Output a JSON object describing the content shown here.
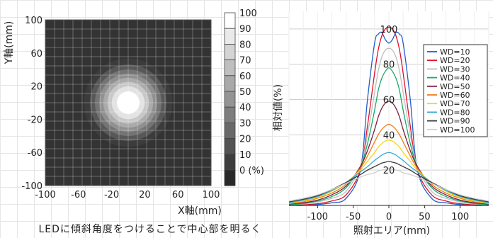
{
  "chart_data": [
    {
      "type": "heatmap",
      "title": "",
      "xlabel": "X軸(mm)",
      "ylabel": "Y軸(mm)",
      "xlim": [
        -100,
        100
      ],
      "ylim": [
        -100,
        100
      ],
      "x_ticks": [
        "-100",
        "-60",
        "-20",
        "20",
        "60",
        "100"
      ],
      "y_ticks": [
        "100",
        "60",
        "20",
        "-20",
        "-60",
        "-100"
      ],
      "center": [
        0,
        0
      ],
      "peak": 100,
      "falloff_mm": 42,
      "colorbar": {
        "levels": [
          100,
          90,
          80,
          70,
          60,
          50,
          40,
          30,
          20,
          10,
          0
        ],
        "labels": [
          "100",
          "90",
          "80",
          "70",
          "60",
          "50",
          "40",
          "30",
          "20",
          "10",
          "0 (%)"
        ],
        "orientation": "vertical",
        "colors": "white-to-black"
      },
      "grid": true,
      "caption": "LEDに傾斜角度をつけることで中心部を明るく"
    },
    {
      "type": "line",
      "title": "",
      "xlabel": "照射エリア(mm)",
      "ylabel": "相対値(%)",
      "xlim": [
        -140,
        140
      ],
      "ylim": [
        0,
        110
      ],
      "x_ticks": [
        "-100",
        "-50",
        "0",
        "50",
        "100"
      ],
      "y_labels": [
        "100",
        "80",
        "60",
        "40",
        "20"
      ],
      "grid": true,
      "legend": "right",
      "x": [
        -140,
        -120,
        -100,
        -80,
        -60,
        -40,
        -30,
        -20,
        -15,
        -10,
        -5,
        0,
        5,
        10,
        15,
        20,
        30,
        40,
        60,
        80,
        100,
        120,
        140
      ],
      "series": [
        {
          "name": "WD=10",
          "color": "#1f5fc8",
          "values": [
            0,
            0,
            0.5,
            1.5,
            4,
            20,
            60,
            92,
            97,
            98,
            94,
            92,
            94,
            98,
            97,
            92,
            60,
            20,
            4,
            1.5,
            0.5,
            0,
            0
          ]
        },
        {
          "name": "WD=20",
          "color": "#e0102a",
          "values": [
            0,
            0.3,
            1,
            2.5,
            6,
            20,
            45,
            75,
            88,
            96,
            100,
            101,
            100,
            96,
            88,
            75,
            45,
            20,
            6,
            2.5,
            1,
            0.3,
            0
          ]
        },
        {
          "name": "WD=30",
          "color": "#bfbfbf",
          "values": [
            0.3,
            0.8,
            2,
            4,
            8,
            22,
            40,
            64,
            76,
            84,
            88,
            89,
            88,
            84,
            76,
            64,
            40,
            22,
            8,
            4,
            2,
            0.8,
            0.3
          ]
        },
        {
          "name": "WD=40",
          "color": "#1aa86a",
          "values": [
            0.5,
            1,
            2.5,
            5,
            10,
            22,
            35,
            54,
            65,
            72,
            76,
            78,
            76,
            72,
            65,
            54,
            35,
            22,
            10,
            5,
            2.5,
            1,
            0.5
          ]
        },
        {
          "name": "WD=50",
          "color": "#7b1c3c",
          "values": [
            0.8,
            1.5,
            3,
            6,
            11,
            22,
            31,
            43,
            50,
            55,
            58,
            59,
            58,
            55,
            50,
            43,
            31,
            22,
            11,
            6,
            3,
            1.5,
            0.8
          ]
        },
        {
          "name": "WD=60",
          "color": "#ee7f18",
          "values": [
            1,
            2,
            4,
            7,
            12,
            21,
            28,
            36,
            40,
            43,
            45,
            46,
            45,
            43,
            40,
            36,
            28,
            21,
            12,
            7,
            4,
            2,
            1
          ]
        },
        {
          "name": "WD=70",
          "color": "#f3d51a",
          "values": [
            1.2,
            2.5,
            4.5,
            8,
            13,
            20,
            25,
            30,
            33,
            35,
            36.5,
            37,
            36.5,
            35,
            33,
            30,
            25,
            20,
            13,
            8,
            4.5,
            2.5,
            1.2
          ]
        },
        {
          "name": "WD=80",
          "color": "#33a8dc",
          "values": [
            1.5,
            3,
            5,
            8.5,
            13,
            19,
            22,
            25.5,
            27,
            28.5,
            29.5,
            30,
            29.5,
            28.5,
            27,
            25.5,
            22,
            19,
            13,
            8.5,
            5,
            3,
            1.5
          ]
        },
        {
          "name": "WD=90",
          "color": "#3a3a3a",
          "values": [
            2,
            3.5,
            5.5,
            9,
            13,
            17.5,
            20,
            22,
            23,
            24,
            24.5,
            25,
            24.5,
            24,
            23,
            22,
            20,
            17.5,
            13,
            9,
            5.5,
            3.5,
            2
          ]
        },
        {
          "name": "WD=100",
          "color": "#cfcfcf",
          "values": [
            2.5,
            4,
            6,
            9,
            12.5,
            16,
            17.5,
            18.5,
            19.5,
            20,
            20.5,
            21,
            20.5,
            20,
            19.5,
            18.5,
            17.5,
            16,
            12.5,
            9,
            6,
            4,
            2.5
          ]
        }
      ]
    }
  ]
}
